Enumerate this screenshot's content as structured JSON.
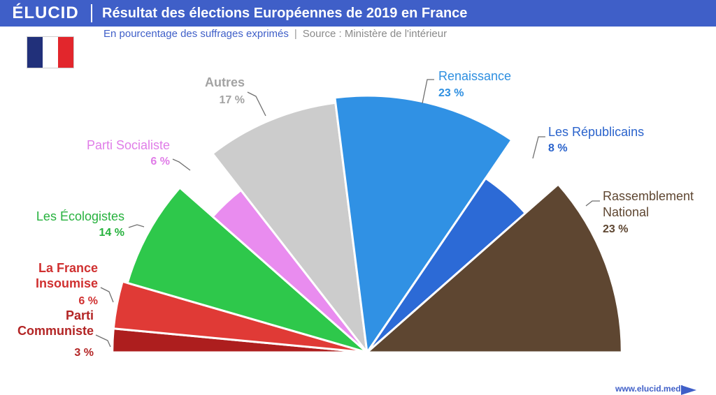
{
  "header": {
    "logo": "ÉLUCID",
    "title": "Résultat des élections Européennes de 2019 en France",
    "subtitle": "En pourcentage des suffrages exprimés",
    "separator": "|",
    "source": "Source : Ministère de l'intérieur"
  },
  "flag": {
    "name": "france-flag",
    "colors": [
      "#21307a",
      "#ffffff",
      "#e2262c"
    ]
  },
  "footer": {
    "url": "www.elucid.media"
  },
  "chart_data": {
    "type": "pie",
    "variant": "half-pie (semicircle)",
    "unit": "%",
    "series": [
      {
        "label_lines": [
          "Parti",
          "Communiste"
        ],
        "value_label": "3 %",
        "value": 3,
        "color": "#ad1e1e",
        "text_color": "#b32525"
      },
      {
        "label_lines": [
          "La France",
          "Insoumise"
        ],
        "value_label": "6 %",
        "value": 6,
        "color": "#e03a36",
        "text_color": "#d03030"
      },
      {
        "label_lines": [
          "Les Écologistes"
        ],
        "value_label": "14 %",
        "value": 14,
        "color": "#2ec84b",
        "text_color": "#27b23e"
      },
      {
        "label_lines": [
          "Parti Socialiste"
        ],
        "value_label": "6 %",
        "value": 6,
        "color": "#e98cef",
        "text_color": "#e07de8"
      },
      {
        "label_lines": [
          "Autres"
        ],
        "value_label": "17 %",
        "value": 17,
        "color": "#cccccc",
        "text_color": "#a3a3a3"
      },
      {
        "label_lines": [
          "Renaissance"
        ],
        "value_label": "23 %",
        "value": 23,
        "color": "#3091e4",
        "text_color": "#2e8fe0"
      },
      {
        "label_lines": [
          "Les Républicains"
        ],
        "value_label": "8 %",
        "value": 8,
        "color": "#2c6ad6",
        "text_color": "#2a63cc"
      },
      {
        "label_lines": [
          "Rassemblement",
          "National"
        ],
        "value_label": "23 %",
        "value": 23,
        "color": "#5e4631",
        "text_color": "#5e4631"
      }
    ]
  }
}
